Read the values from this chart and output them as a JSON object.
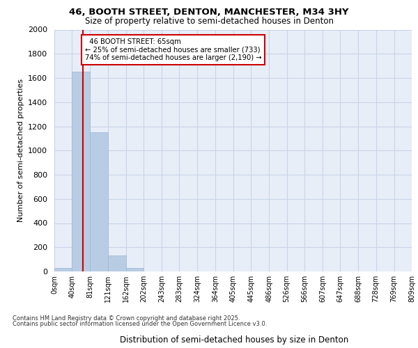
{
  "title_line1": "46, BOOTH STREET, DENTON, MANCHESTER, M34 3HY",
  "title_line2": "Size of property relative to semi-detached houses in Denton",
  "xlabel": "Distribution of semi-detached houses by size in Denton",
  "ylabel": "Number of semi-detached properties",
  "bin_labels": [
    "0sqm",
    "40sqm",
    "81sqm",
    "121sqm",
    "162sqm",
    "202sqm",
    "243sqm",
    "283sqm",
    "324sqm",
    "364sqm",
    "405sqm",
    "445sqm",
    "486sqm",
    "526sqm",
    "566sqm",
    "607sqm",
    "647sqm",
    "688sqm",
    "728sqm",
    "769sqm",
    "809sqm"
  ],
  "bin_edges": [
    0,
    40,
    81,
    121,
    162,
    202,
    243,
    283,
    324,
    364,
    405,
    445,
    486,
    526,
    566,
    607,
    647,
    688,
    728,
    769,
    809
  ],
  "bar_heights": [
    30,
    1650,
    1150,
    130,
    30,
    0,
    0,
    0,
    0,
    0,
    0,
    0,
    0,
    0,
    0,
    0,
    0,
    0,
    0,
    0
  ],
  "bar_color": "#b8cce4",
  "bar_edgecolor": "#9db8d4",
  "subject_value": 65,
  "subject_label": "46 BOOTH STREET: 65sqm",
  "pct_smaller": 25,
  "pct_larger": 74,
  "n_smaller": 733,
  "n_larger": 2190,
  "annotation_box_color": "#cc0000",
  "vline_color": "#cc0000",
  "ylim": [
    0,
    2000
  ],
  "yticks": [
    0,
    200,
    400,
    600,
    800,
    1000,
    1200,
    1400,
    1600,
    1800,
    2000
  ],
  "grid_color": "#c8d4e8",
  "bg_color": "#e8eef8",
  "footnote_line1": "Contains HM Land Registry data © Crown copyright and database right 2025.",
  "footnote_line2": "Contains public sector information licensed under the Open Government Licence v3.0."
}
